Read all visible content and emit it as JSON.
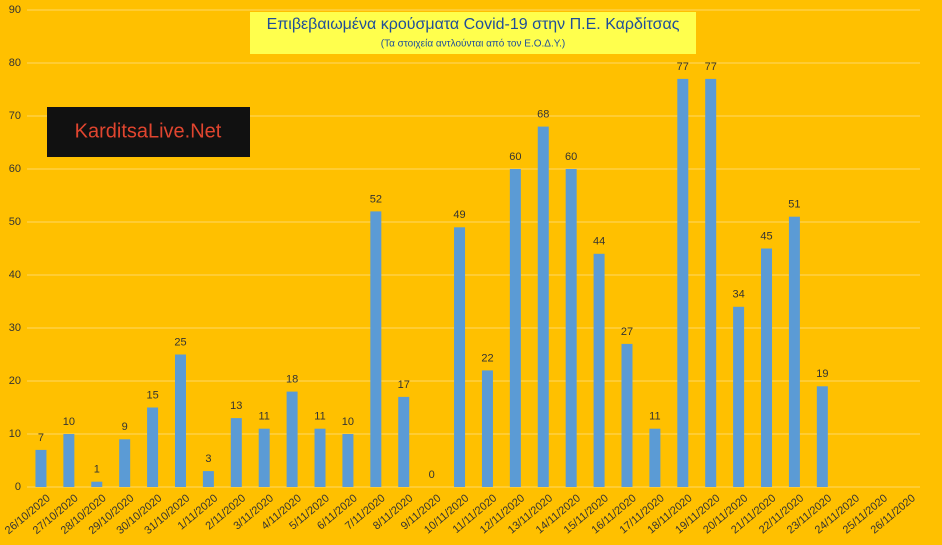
{
  "chart_data": {
    "type": "bar",
    "title": "Επιβεβαιωμένα κρούσματα Covid-19 στην Π.Ε. Καρδίτσας",
    "subtitle": "(Τα στοιχεία αντλούνται από τον Ε.Ο.Δ.Υ.)",
    "watermark": "KarditsaLive.Net",
    "categories": [
      "26/10/2020",
      "27/10/2020",
      "28/10/2020",
      "29/10/2020",
      "30/10/2020",
      "31/10/2020",
      "1/11/2020",
      "2/11/2020",
      "3/11/2020",
      "4/11/2020",
      "5/11/2020",
      "6/11/2020",
      "7/11/2020",
      "8/11/2020",
      "9/11/2020",
      "10/11/2020",
      "11/11/2020",
      "12/11/2020",
      "13/11/2020",
      "14/11/2020",
      "15/11/2020",
      "16/11/2020",
      "17/11/2020",
      "18/11/2020",
      "19/11/2020",
      "20/11/2020",
      "21/11/2020",
      "22/11/2020",
      "23/11/2020",
      "24/11/2020",
      "25/11/2020",
      "26/11/2020"
    ],
    "values": [
      7,
      10,
      1,
      9,
      15,
      25,
      3,
      13,
      11,
      18,
      11,
      10,
      52,
      17,
      0,
      49,
      22,
      60,
      68,
      60,
      44,
      27,
      11,
      77,
      77,
      34,
      45,
      51,
      19,
      null,
      null,
      null
    ],
    "color": "#5b9bd5",
    "ylim": [
      0,
      90
    ],
    "yticks": [
      0,
      10,
      20,
      30,
      40,
      50,
      60,
      70,
      80,
      90
    ],
    "grid": true
  }
}
